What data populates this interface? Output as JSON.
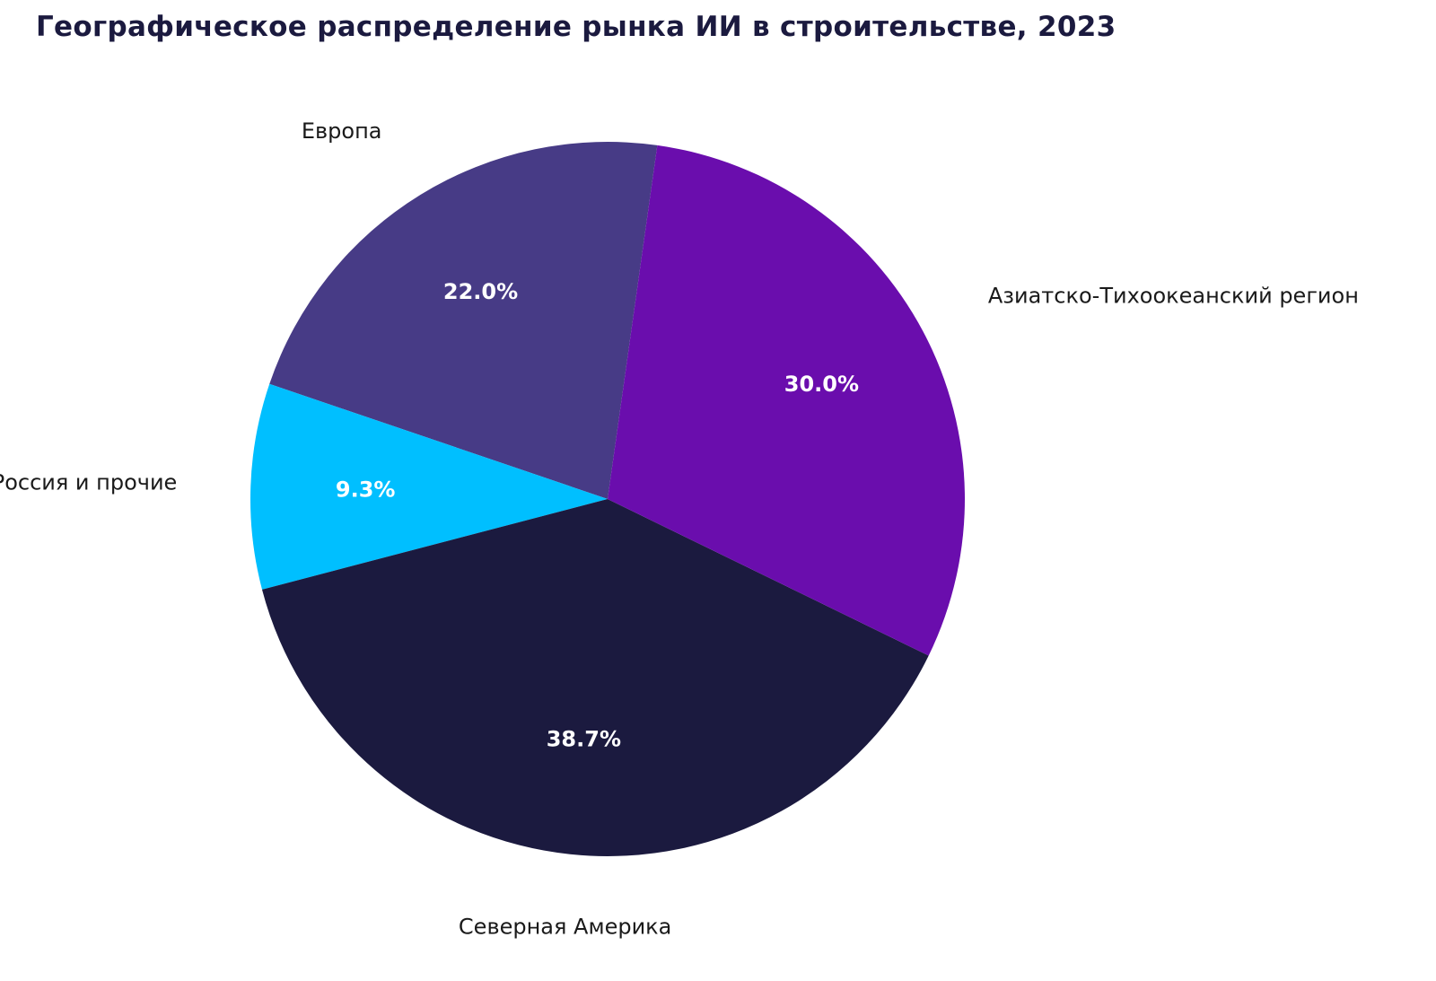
{
  "chart_data": {
    "type": "pie",
    "title": "Географическое распределение рынка ИИ в строительстве, 2023",
    "slices": [
      {
        "label": "Европа",
        "value": 22.0,
        "pct_label": "22.0%",
        "color": "#473b86"
      },
      {
        "label": "Россия и прочие",
        "value": 9.3,
        "pct_label": "9.3%",
        "color": "#00bfff"
      },
      {
        "label": "Северная Америка",
        "value": 38.7,
        "pct_label": "38.7%",
        "color": "#1b1a3f"
      },
      {
        "label": "Азиатско-Тихоокеанский регион",
        "value": 30.0,
        "pct_label": "30.0%",
        "color": "#6a0dad"
      }
    ],
    "start_angle_deg": 82,
    "direction": "counterclockwise"
  }
}
